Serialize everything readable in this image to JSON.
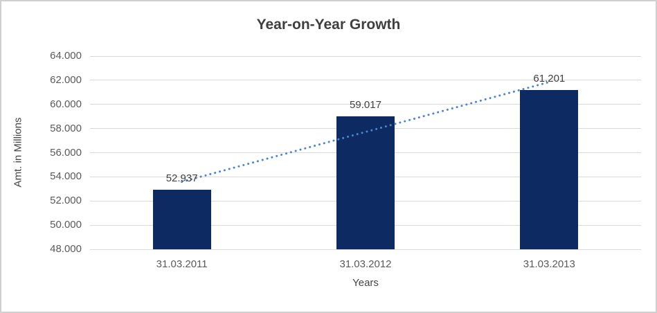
{
  "chart_data": {
    "type": "bar",
    "title": "Year-on-Year Growth",
    "xlabel": "Years",
    "ylabel": "Amt. in Millions",
    "categories": [
      "31.03.2011",
      "31.03.2012",
      "31.03.2013"
    ],
    "values": [
      52937,
      59017,
      61201
    ],
    "value_labels": [
      "52.937",
      "59.017",
      "61.201"
    ],
    "ylim": [
      48000,
      64000
    ],
    "yticks": [
      48000,
      50000,
      52000,
      54000,
      56000,
      58000,
      60000,
      62000,
      64000
    ],
    "ytick_labels": [
      "48.000",
      "50.000",
      "52.000",
      "54.000",
      "56.000",
      "58.000",
      "60.000",
      "62.000",
      "64.000"
    ],
    "grid": true,
    "legend": false,
    "trendline": {
      "type": "linear",
      "style": "dotted"
    },
    "colors": {
      "bar": "#0e2a63",
      "trendline": "#4a86c8",
      "gridline": "#d9d9d9",
      "title_text": "#3f3f3f",
      "axis_text": "#595959"
    }
  }
}
